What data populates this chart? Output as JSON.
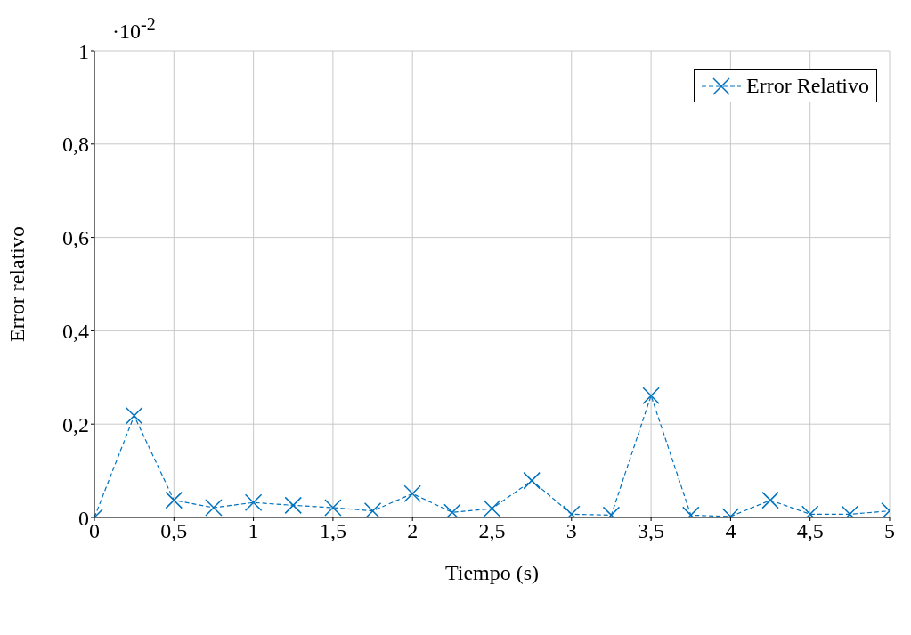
{
  "chart_data": {
    "type": "line",
    "xlabel": "Tiempo (s)",
    "ylabel": "Error relativo",
    "annotations": [
      "·10$^{-2}$"
    ],
    "x": [
      0,
      0.25,
      0.5,
      0.75,
      1,
      1.25,
      1.5,
      1.75,
      2,
      2.25,
      2.5,
      2.75,
      3,
      3.25,
      3.5,
      3.75,
      4,
      4.25,
      4.5,
      4.75,
      5
    ],
    "series": [
      {
        "name": "Error Relativo",
        "color": "#0072bd",
        "values": [
          0,
          0.218,
          0.037,
          0.021,
          0.032,
          0.026,
          0.021,
          0.014,
          0.051,
          0.011,
          0.019,
          0.079,
          0.007,
          0.005,
          0.261,
          0.005,
          0.002,
          0.037,
          0.007,
          0.007,
          0.014
        ]
      }
    ],
    "xlim": [
      0,
      5
    ],
    "xticks": [
      0,
      {
        "value": 0.5,
        "label": "0,5"
      },
      1,
      {
        "value": 1.5,
        "label": "1,5"
      },
      2,
      {
        "value": 2.5,
        "label": "2,5"
      },
      3,
      {
        "value": 3.5,
        "label": "3,5"
      },
      4,
      {
        "value": 4.5,
        "label": "4,5"
      },
      5
    ],
    "ylim": [
      0,
      1
    ],
    "yticks": [
      0,
      {
        "value": 0.2,
        "label": "0,2"
      },
      {
        "value": 0.4,
        "label": "0,4"
      },
      {
        "value": 0.6,
        "label": "0,6"
      },
      {
        "value": 0.8,
        "label": "0,8"
      },
      1
    ],
    "grid": true,
    "legend": "top right",
    "marker": "cross",
    "line_style": "dashed"
  }
}
